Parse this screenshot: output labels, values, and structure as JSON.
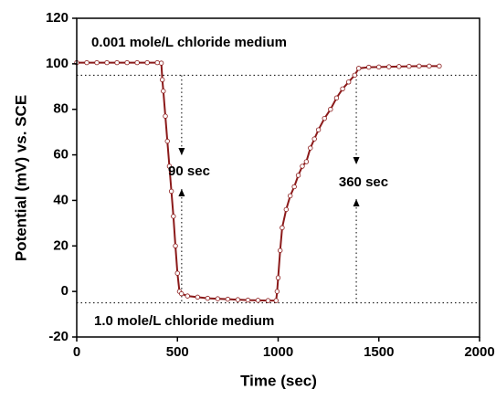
{
  "chart_data": {
    "type": "scatter",
    "x_label": "Time (sec)",
    "y_label": "Potential (mV) vs. SCE",
    "xlim": [
      0,
      2000
    ],
    "xticks": [
      0,
      500,
      1000,
      1500,
      2000
    ],
    "ylim": [
      -20,
      120
    ],
    "yticks": [
      -20,
      0,
      20,
      40,
      60,
      80,
      100,
      120
    ],
    "series": [
      {
        "color": "#8b1a1a",
        "x": [
          0,
          50,
          100,
          150,
          200,
          250,
          300,
          350,
          400,
          420,
          425,
          430,
          440,
          450,
          460,
          470,
          480,
          490,
          500,
          510,
          520,
          550,
          600,
          650,
          700,
          750,
          800,
          850,
          900,
          950,
          990,
          995,
          1000,
          1010,
          1020,
          1040,
          1060,
          1080,
          1100,
          1120,
          1140,
          1160,
          1180,
          1200,
          1230,
          1260,
          1290,
          1320,
          1350,
          1380,
          1400,
          1450,
          1500,
          1550,
          1600,
          1650,
          1700,
          1750,
          1800
        ],
        "values": [
          100.5,
          100.5,
          100.5,
          100.5,
          100.5,
          100.5,
          100.5,
          100.5,
          100.5,
          100.3,
          93,
          88,
          77,
          66,
          55,
          44,
          33,
          20,
          8,
          0,
          -1,
          -2,
          -2.5,
          -3,
          -3.2,
          -3.4,
          -3.6,
          -3.8,
          -3.9,
          -4,
          -4,
          0,
          6,
          18,
          28,
          36,
          42,
          46,
          51,
          55,
          57,
          63,
          67,
          71,
          76,
          80,
          85,
          89,
          92,
          95,
          98,
          98.5,
          98.6,
          98.7,
          98.8,
          98.9,
          99,
          99,
          99
        ]
      }
    ],
    "reference_lines": {
      "y": [
        95,
        -5
      ],
      "x": [
        521,
        1388
      ]
    },
    "annotations": [
      "0.001 mole/L chloride medium",
      "1.0 mole/L chloride medium",
      "90 sec",
      "360 sec"
    ]
  }
}
